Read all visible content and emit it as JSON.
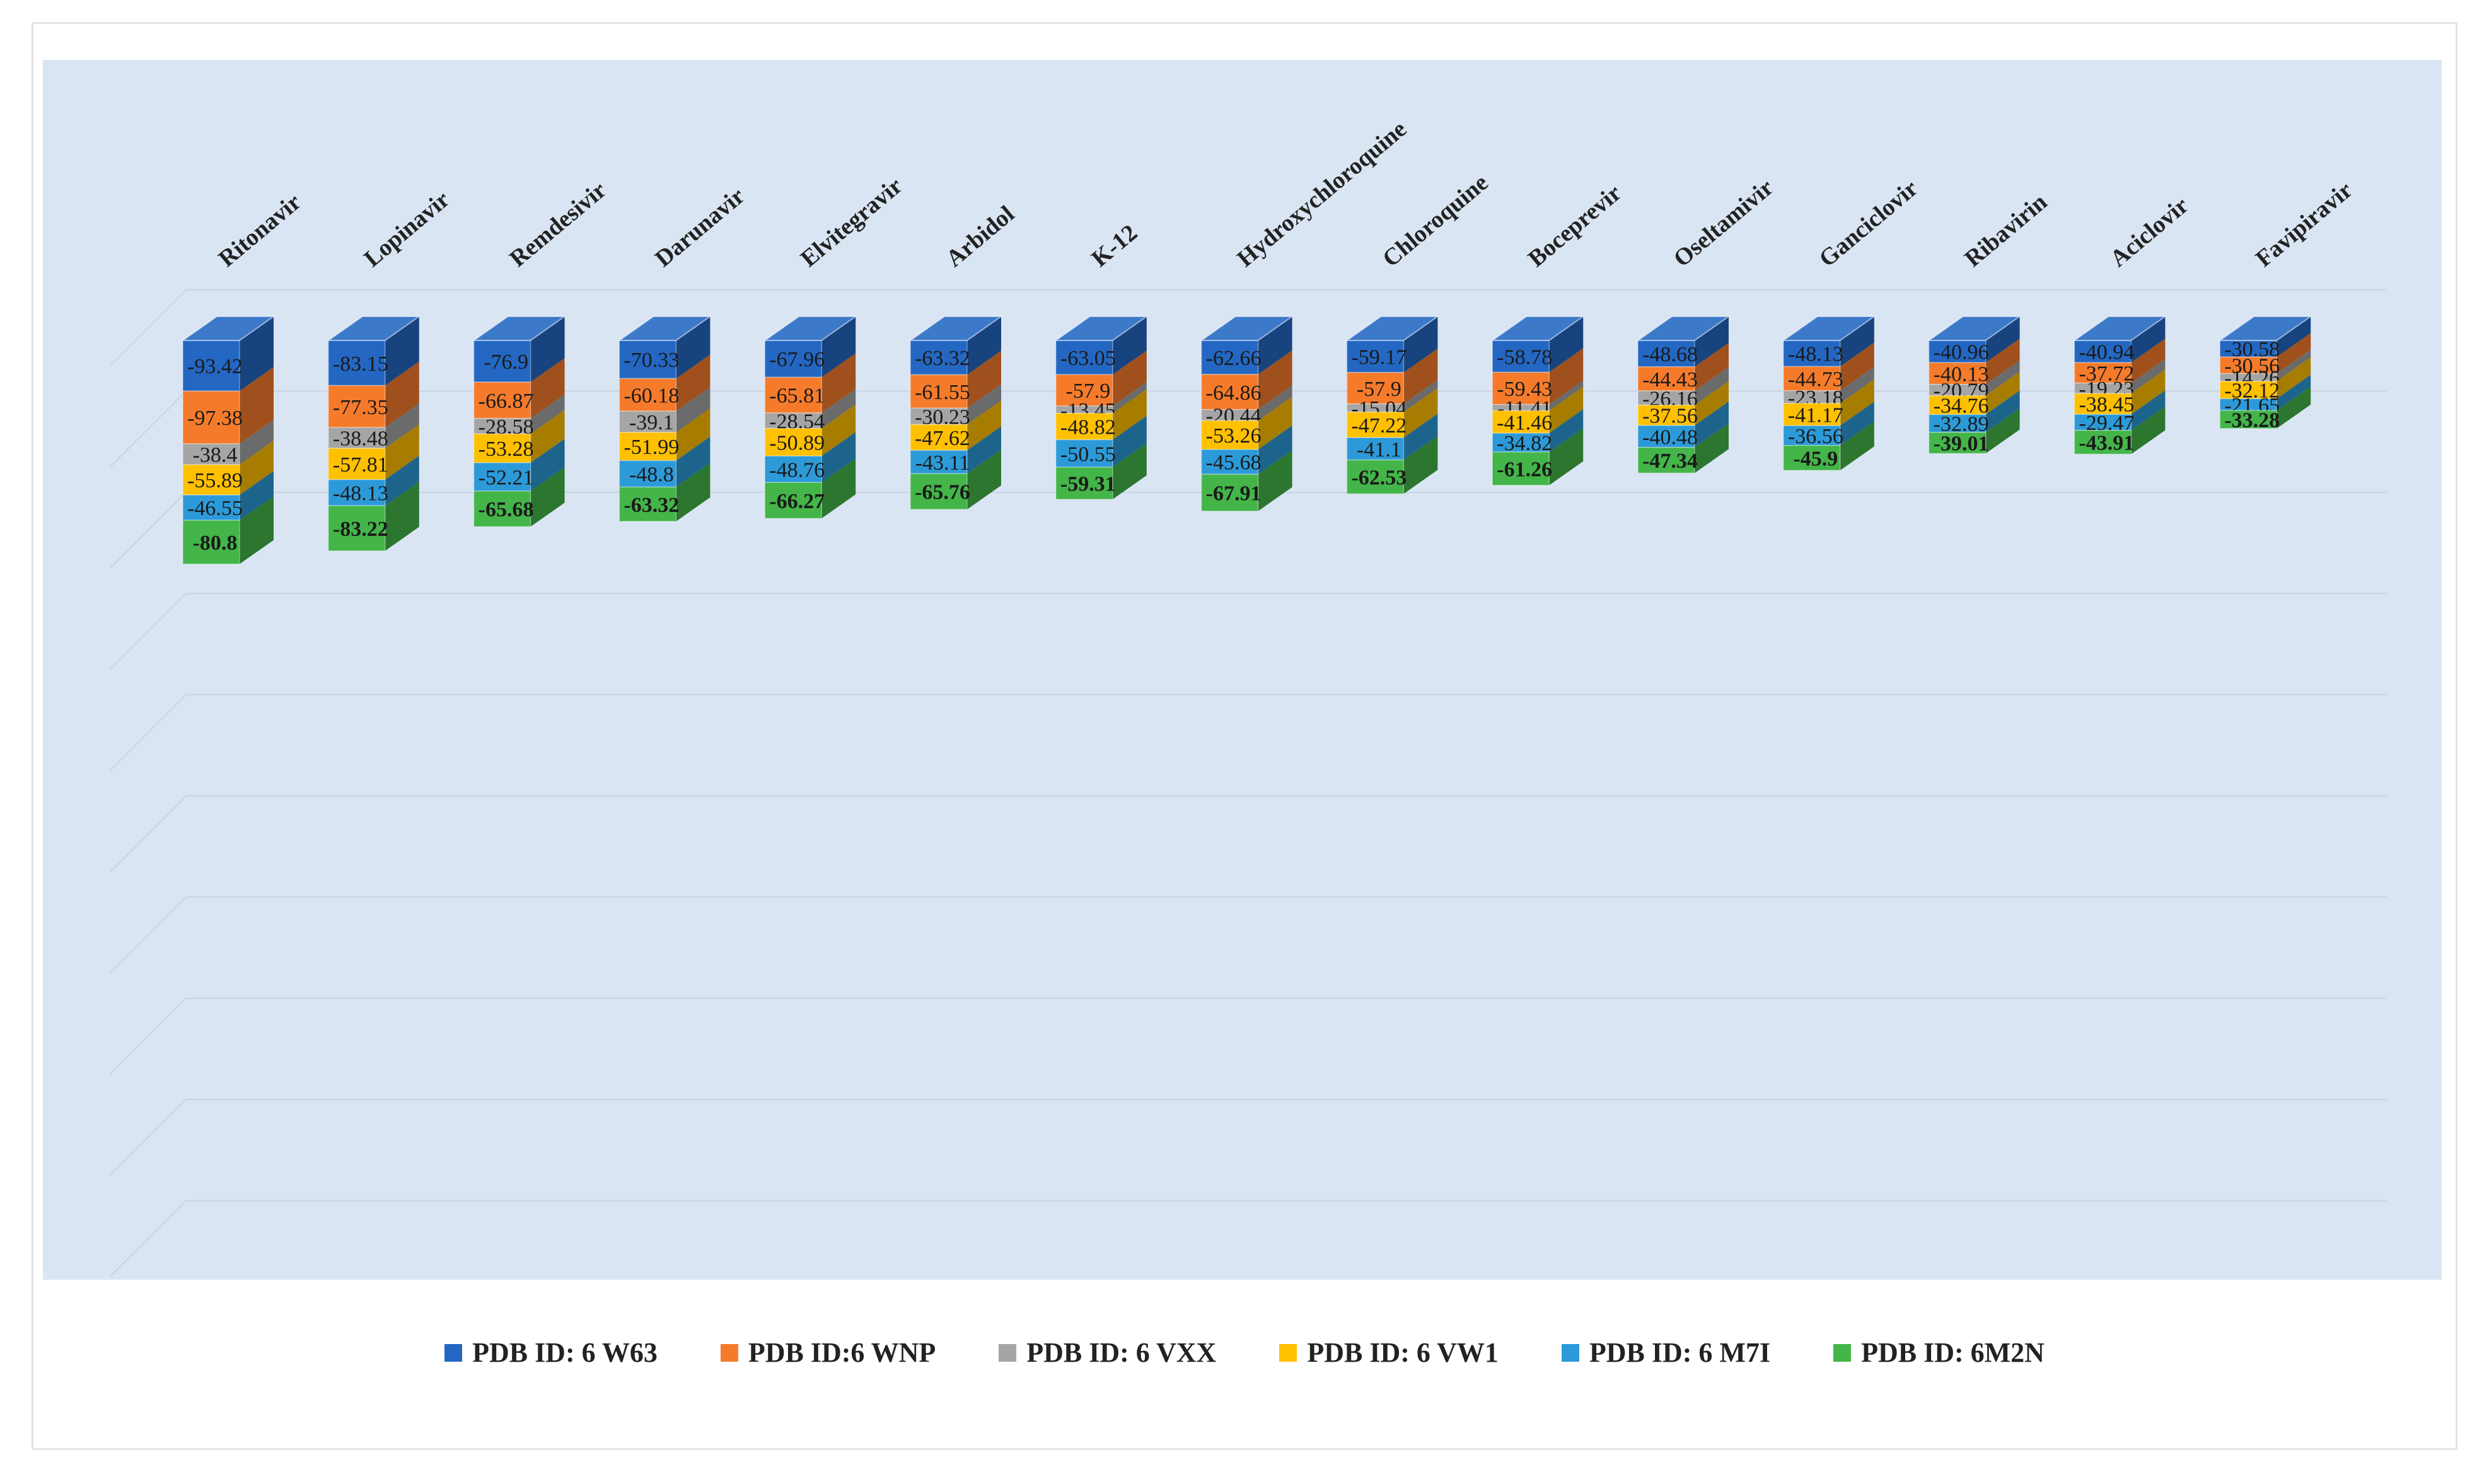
{
  "chart_data": {
    "type": "bar",
    "stacked": true,
    "three_d": true,
    "categories": [
      "Ritonavir",
      "Lopinavir",
      "Remdesivir",
      "Darunavir",
      "Elvitegravir",
      "Arbidol",
      "K-12",
      "Hydroxychloroquine",
      "Chloroquine",
      "Boceprevir",
      "Oseltamivir",
      "Ganciclovir",
      "Ribavirin",
      "Aciclovir",
      "Favipiravir"
    ],
    "series": [
      {
        "name": "PDB ID: 6 W63",
        "color": "#2367c2",
        "values": [
          -93.42,
          -83.15,
          -76.9,
          -70.33,
          -67.96,
          -63.32,
          -63.05,
          -62.66,
          -59.17,
          -58.78,
          -48.68,
          -48.13,
          -40.96,
          -40.94,
          -30.58
        ]
      },
      {
        "name": "PDB ID:6 WNP",
        "color": "#f57b2b",
        "values": [
          -97.38,
          -77.35,
          -66.87,
          -60.18,
          -65.81,
          -61.55,
          -57.9,
          -64.86,
          -57.9,
          -59.43,
          -44.43,
          -44.73,
          -40.13,
          -37.72,
          -30.56
        ]
      },
      {
        "name": "PDB ID: 6 VXX",
        "color": "#a5a5a5",
        "values": [
          -38.4,
          -38.48,
          -28.58,
          -39.1,
          -28.54,
          -30.23,
          -13.45,
          -20.44,
          -15.04,
          -11.41,
          -26.16,
          -23.18,
          -20.79,
          -19.23,
          -14.26
        ]
      },
      {
        "name": "PDB ID: 6 VW1",
        "color": "#ffc000",
        "values": [
          -55.89,
          -57.81,
          -53.28,
          -51.99,
          -50.89,
          -47.62,
          -48.82,
          -53.26,
          -47.22,
          -41.46,
          -37.56,
          -41.17,
          -34.76,
          -38.45,
          -32.12
        ]
      },
      {
        "name": "PDB ID: 6 M7I",
        "color": "#2c9ad8",
        "values": [
          -46.55,
          -48.13,
          -52.21,
          -48.8,
          -48.76,
          -43.11,
          -50.55,
          -45.68,
          -41.1,
          -34.82,
          -40.48,
          -36.56,
          -32.89,
          -29.47,
          -21.65
        ]
      },
      {
        "name": "PDB ID: 6M2N",
        "color": "#44b549",
        "values": [
          -80.8,
          -83.22,
          -65.68,
          -63.32,
          -66.27,
          -65.76,
          -59.31,
          -67.91,
          -62.53,
          -61.26,
          -47.34,
          -45.9,
          -39.01,
          -43.91,
          -33.28
        ]
      }
    ],
    "legend_position": "bottom",
    "grid": true
  }
}
